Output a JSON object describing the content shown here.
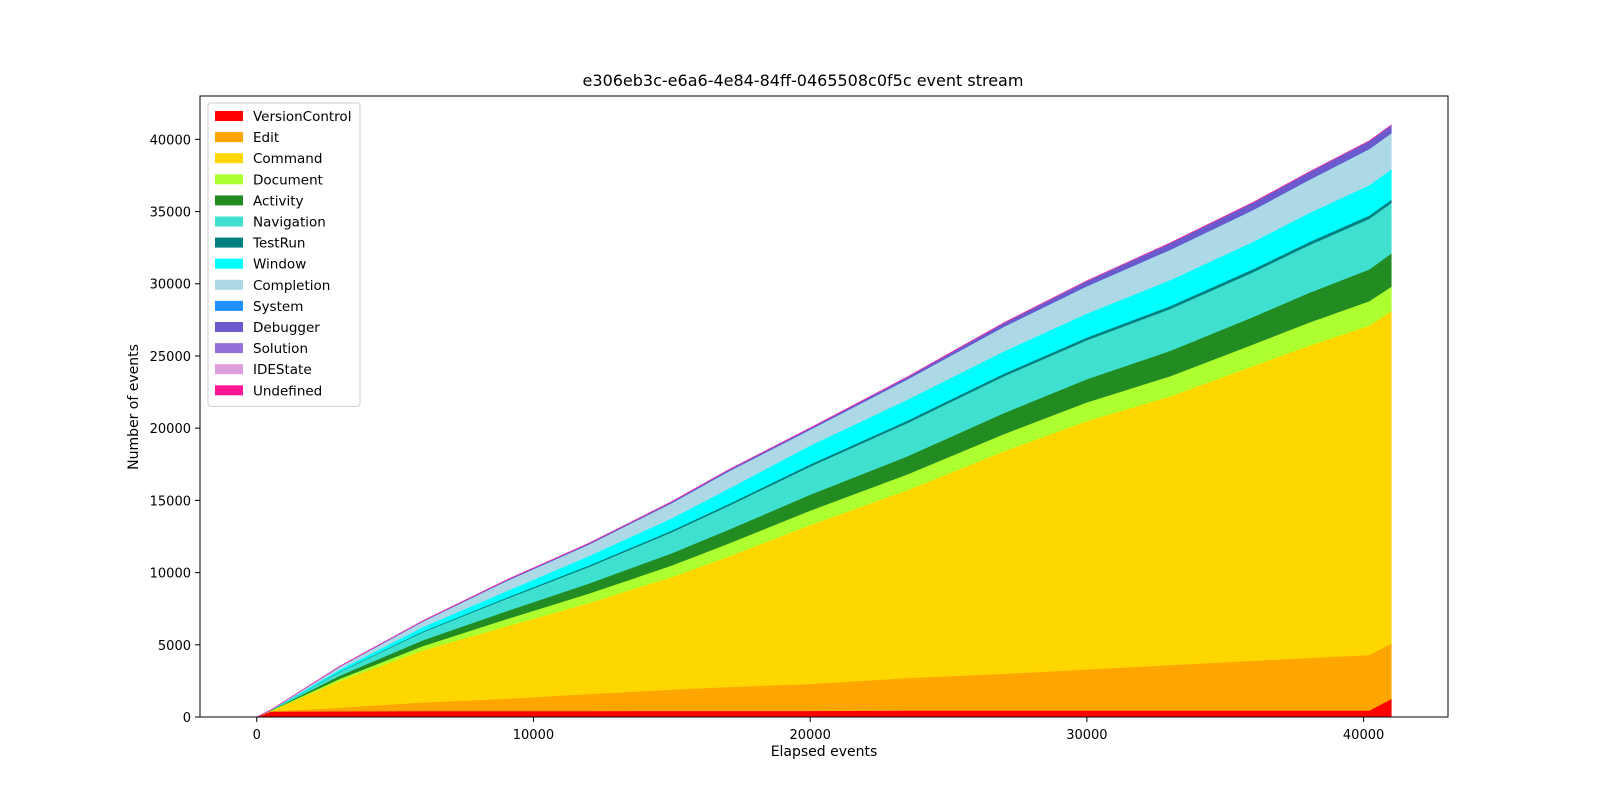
{
  "chart_data": {
    "type": "area",
    "stacked": true,
    "title": "e306eb3c-e6a6-4e84-84ff-0465508c0f5c event stream",
    "xlabel": "Elapsed events",
    "ylabel": "Number of events",
    "xlim": [
      -2050,
      43050
    ],
    "ylim": [
      0,
      43000
    ],
    "xticks": [
      0,
      10000,
      20000,
      30000,
      40000
    ],
    "yticks": [
      0,
      5000,
      10000,
      15000,
      20000,
      25000,
      30000,
      35000,
      40000
    ],
    "grid": false,
    "legend_position": "upper left",
    "x": [
      0,
      500,
      3000,
      6000,
      9000,
      12000,
      15000,
      17000,
      20000,
      23500,
      27000,
      30000,
      33000,
      36000,
      38000,
      40200,
      41000
    ],
    "series": [
      {
        "name": "VersionControl",
        "color": "#ff0000",
        "values": [
          0,
          380,
          400,
          420,
          420,
          420,
          430,
          430,
          430,
          450,
          450,
          450,
          450,
          450,
          450,
          450,
          1250
        ]
      },
      {
        "name": "Edit",
        "color": "#ffa500",
        "values": [
          0,
          20,
          250,
          600,
          850,
          1180,
          1470,
          1650,
          1870,
          2250,
          2550,
          2850,
          3150,
          3450,
          3650,
          3850,
          3850
        ]
      },
      {
        "name": "Command",
        "color": "#ffd700",
        "values": [
          0,
          20,
          1850,
          3600,
          5000,
          6300,
          7800,
          9000,
          11000,
          13000,
          15400,
          17200,
          18600,
          20400,
          21600,
          22800,
          23000
        ]
      },
      {
        "name": "Document",
        "color": "#adff2f",
        "values": [
          0,
          10,
          150,
          300,
          500,
          650,
          800,
          900,
          1000,
          1100,
          1200,
          1300,
          1400,
          1500,
          1600,
          1700,
          1700
        ]
      },
      {
        "name": "Activity",
        "color": "#228b22",
        "values": [
          0,
          10,
          220,
          400,
          550,
          700,
          850,
          950,
          1100,
          1250,
          1450,
          1600,
          1750,
          1900,
          2050,
          2200,
          2300
        ]
      },
      {
        "name": "Navigation",
        "color": "#40e0d0",
        "values": [
          0,
          10,
          250,
          550,
          850,
          1150,
          1450,
          1650,
          1950,
          2300,
          2550,
          2700,
          2900,
          3100,
          3300,
          3500,
          3500
        ]
      },
      {
        "name": "TestRun",
        "color": "#008080",
        "values": [
          0,
          5,
          30,
          60,
          80,
          100,
          120,
          130,
          150,
          170,
          180,
          190,
          200,
          210,
          220,
          230,
          230
        ]
      },
      {
        "name": "Window",
        "color": "#00ffff",
        "values": [
          0,
          10,
          150,
          300,
          450,
          650,
          850,
          1050,
          1300,
          1450,
          1550,
          1650,
          1800,
          1900,
          2000,
          2100,
          2100
        ]
      },
      {
        "name": "Completion",
        "color": "#add8e6",
        "values": [
          0,
          10,
          180,
          380,
          700,
          800,
          1050,
          1200,
          1100,
          1400,
          1700,
          1900,
          2100,
          2200,
          2300,
          2500,
          2500
        ]
      },
      {
        "name": "System",
        "color": "#1e90ff",
        "values": [
          0,
          0,
          5,
          5,
          5,
          5,
          5,
          5,
          5,
          5,
          5,
          5,
          5,
          5,
          5,
          5,
          5
        ]
      },
      {
        "name": "Debugger",
        "color": "#6a5acd",
        "values": [
          0,
          5,
          15,
          30,
          50,
          60,
          80,
          90,
          100,
          150,
          250,
          350,
          450,
          500,
          520,
          540,
          540
        ]
      },
      {
        "name": "Solution",
        "color": "#9370db",
        "values": [
          0,
          0,
          5,
          5,
          5,
          5,
          5,
          5,
          5,
          5,
          5,
          5,
          5,
          5,
          5,
          5,
          5
        ]
      },
      {
        "name": "IDEState",
        "color": "#dda0dd",
        "values": [
          0,
          0,
          5,
          5,
          5,
          5,
          5,
          5,
          5,
          5,
          5,
          5,
          5,
          5,
          5,
          5,
          5
        ]
      },
      {
        "name": " Undefined",
        "color": "#ff1493",
        "values": [
          0,
          0,
          5,
          5,
          5,
          5,
          5,
          5,
          5,
          5,
          5,
          5,
          5,
          5,
          5,
          5,
          5
        ]
      }
    ]
  }
}
